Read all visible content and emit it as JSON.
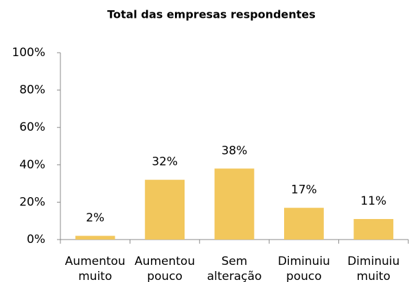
{
  "chart_data": {
    "type": "bar",
    "title": "Total das empresas respondentes",
    "categories": [
      [
        "Aumentou",
        "muito"
      ],
      [
        "Aumentou",
        "pouco"
      ],
      [
        "Sem",
        "alteração"
      ],
      [
        "Diminuiu",
        "pouco"
      ],
      [
        "Diminuiu",
        "muito"
      ]
    ],
    "values": [
      2,
      32,
      38,
      17,
      11
    ],
    "value_labels": [
      "2%",
      "32%",
      "38%",
      "17%",
      "11%"
    ],
    "color": "#f2c75c",
    "ylim": [
      0,
      100
    ],
    "yticks": [
      {
        "value": 0,
        "label": "0%"
      },
      {
        "value": 20,
        "label": "20%"
      },
      {
        "value": 40,
        "label": "40%"
      },
      {
        "value": 60,
        "label": "60%"
      },
      {
        "value": 80,
        "label": "80%"
      },
      {
        "value": 100,
        "label": "100%"
      }
    ],
    "grid": false
  }
}
